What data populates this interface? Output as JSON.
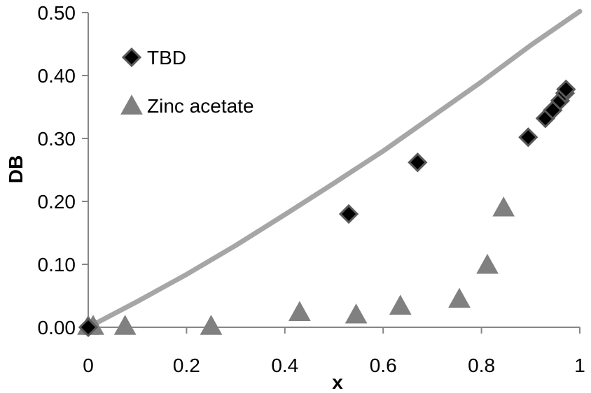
{
  "chart_data": {
    "type": "scatter",
    "xlabel": "x",
    "ylabel": "DB",
    "xlim": [
      0,
      1
    ],
    "ylim": [
      0,
      0.5
    ],
    "x_ticks": [
      "0",
      "0.2",
      "0.4",
      "0.6",
      "0.8",
      "1"
    ],
    "y_ticks": [
      "0.00",
      "0.10",
      "0.20",
      "0.30",
      "0.40",
      "0.50"
    ],
    "grid": false,
    "legend_position": "top-left",
    "series": [
      {
        "name": "TBD",
        "marker": "diamond",
        "color": "#000000",
        "edge_color": "#595959",
        "points": [
          {
            "x": 0,
            "y": 0
          },
          {
            "x": 0.53,
            "y": 0.18
          },
          {
            "x": 0.67,
            "y": 0.262
          },
          {
            "x": 0.895,
            "y": 0.302
          },
          {
            "x": 0.93,
            "y": 0.332
          },
          {
            "x": 0.945,
            "y": 0.345
          },
          {
            "x": 0.96,
            "y": 0.36
          },
          {
            "x": 0.97,
            "y": 0.372
          },
          {
            "x": 0.972,
            "y": 0.378
          }
        ]
      },
      {
        "name": "Zinc acetate",
        "marker": "triangle",
        "color": "#808080",
        "points": [
          {
            "x": 0,
            "y": 0
          },
          {
            "x": 0.01,
            "y": 0
          },
          {
            "x": 0.075,
            "y": 0
          },
          {
            "x": 0.25,
            "y": 0
          },
          {
            "x": 0.43,
            "y": 0.022
          },
          {
            "x": 0.545,
            "y": 0.018
          },
          {
            "x": 0.635,
            "y": 0.032
          },
          {
            "x": 0.755,
            "y": 0.043
          },
          {
            "x": 0.812,
            "y": 0.097
          },
          {
            "x": 0.845,
            "y": 0.188
          }
        ]
      }
    ],
    "curve": {
      "color": "#a6a6a6",
      "points": [
        {
          "x": 0,
          "y": 0
        },
        {
          "x": 0.1,
          "y": 0.041
        },
        {
          "x": 0.2,
          "y": 0.084
        },
        {
          "x": 0.3,
          "y": 0.13
        },
        {
          "x": 0.4,
          "y": 0.179
        },
        {
          "x": 0.5,
          "y": 0.229
        },
        {
          "x": 0.6,
          "y": 0.28
        },
        {
          "x": 0.7,
          "y": 0.335
        },
        {
          "x": 0.8,
          "y": 0.39
        },
        {
          "x": 0.9,
          "y": 0.448
        },
        {
          "x": 1.0,
          "y": 0.502
        }
      ]
    }
  }
}
